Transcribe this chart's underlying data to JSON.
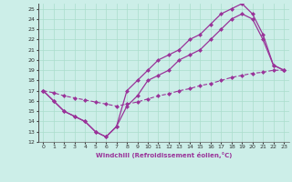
{
  "xlabel": "Windchill (Refroidissement éolien,°C)",
  "background_color": "#cceee8",
  "grid_color": "#aaddcc",
  "line_color": "#993399",
  "xlim": [
    -0.5,
    23.5
  ],
  "ylim": [
    12,
    25.5
  ],
  "xticks": [
    0,
    1,
    2,
    3,
    4,
    5,
    6,
    7,
    8,
    9,
    10,
    11,
    12,
    13,
    14,
    15,
    16,
    17,
    18,
    19,
    20,
    21,
    22,
    23
  ],
  "yticks": [
    12,
    13,
    14,
    15,
    16,
    17,
    18,
    19,
    20,
    21,
    22,
    23,
    24,
    25
  ],
  "line1": {
    "x": [
      0,
      1,
      2,
      3,
      4,
      5,
      6,
      7,
      8,
      9,
      10,
      11,
      12,
      13,
      14,
      15,
      16,
      17,
      18,
      19,
      20,
      21,
      22,
      23
    ],
    "y": [
      17,
      16,
      15,
      14.5,
      14,
      13,
      12.5,
      13.5,
      17,
      18,
      19,
      20,
      20.5,
      21,
      22,
      22.5,
      23.5,
      24.5,
      25,
      25.5,
      24.5,
      22.5,
      19.5,
      19
    ]
  },
  "line2": {
    "x": [
      0,
      1,
      2,
      3,
      4,
      5,
      6,
      7,
      8,
      9,
      10,
      11,
      12,
      13,
      14,
      15,
      16,
      17,
      18,
      19,
      20,
      21,
      22,
      23
    ],
    "y": [
      17,
      16,
      15,
      14.5,
      14,
      13,
      12.5,
      13.5,
      15.5,
      16.5,
      18,
      18.5,
      19,
      20,
      20.5,
      21,
      22,
      23,
      24,
      24.5,
      24,
      22,
      19.5,
      19
    ]
  },
  "line3": {
    "x": [
      0,
      1,
      2,
      3,
      4,
      5,
      6,
      7,
      8,
      9,
      10,
      11,
      12,
      13,
      14,
      15,
      16,
      17,
      18,
      19,
      20,
      21,
      22,
      23
    ],
    "y": [
      17,
      16.8,
      16.5,
      16.3,
      16.1,
      15.9,
      15.7,
      15.5,
      15.7,
      15.9,
      16.2,
      16.5,
      16.7,
      17.0,
      17.2,
      17.5,
      17.7,
      18.0,
      18.3,
      18.5,
      18.7,
      18.8,
      19.0,
      19.0
    ]
  },
  "marker": "D",
  "markersize": 2.5
}
